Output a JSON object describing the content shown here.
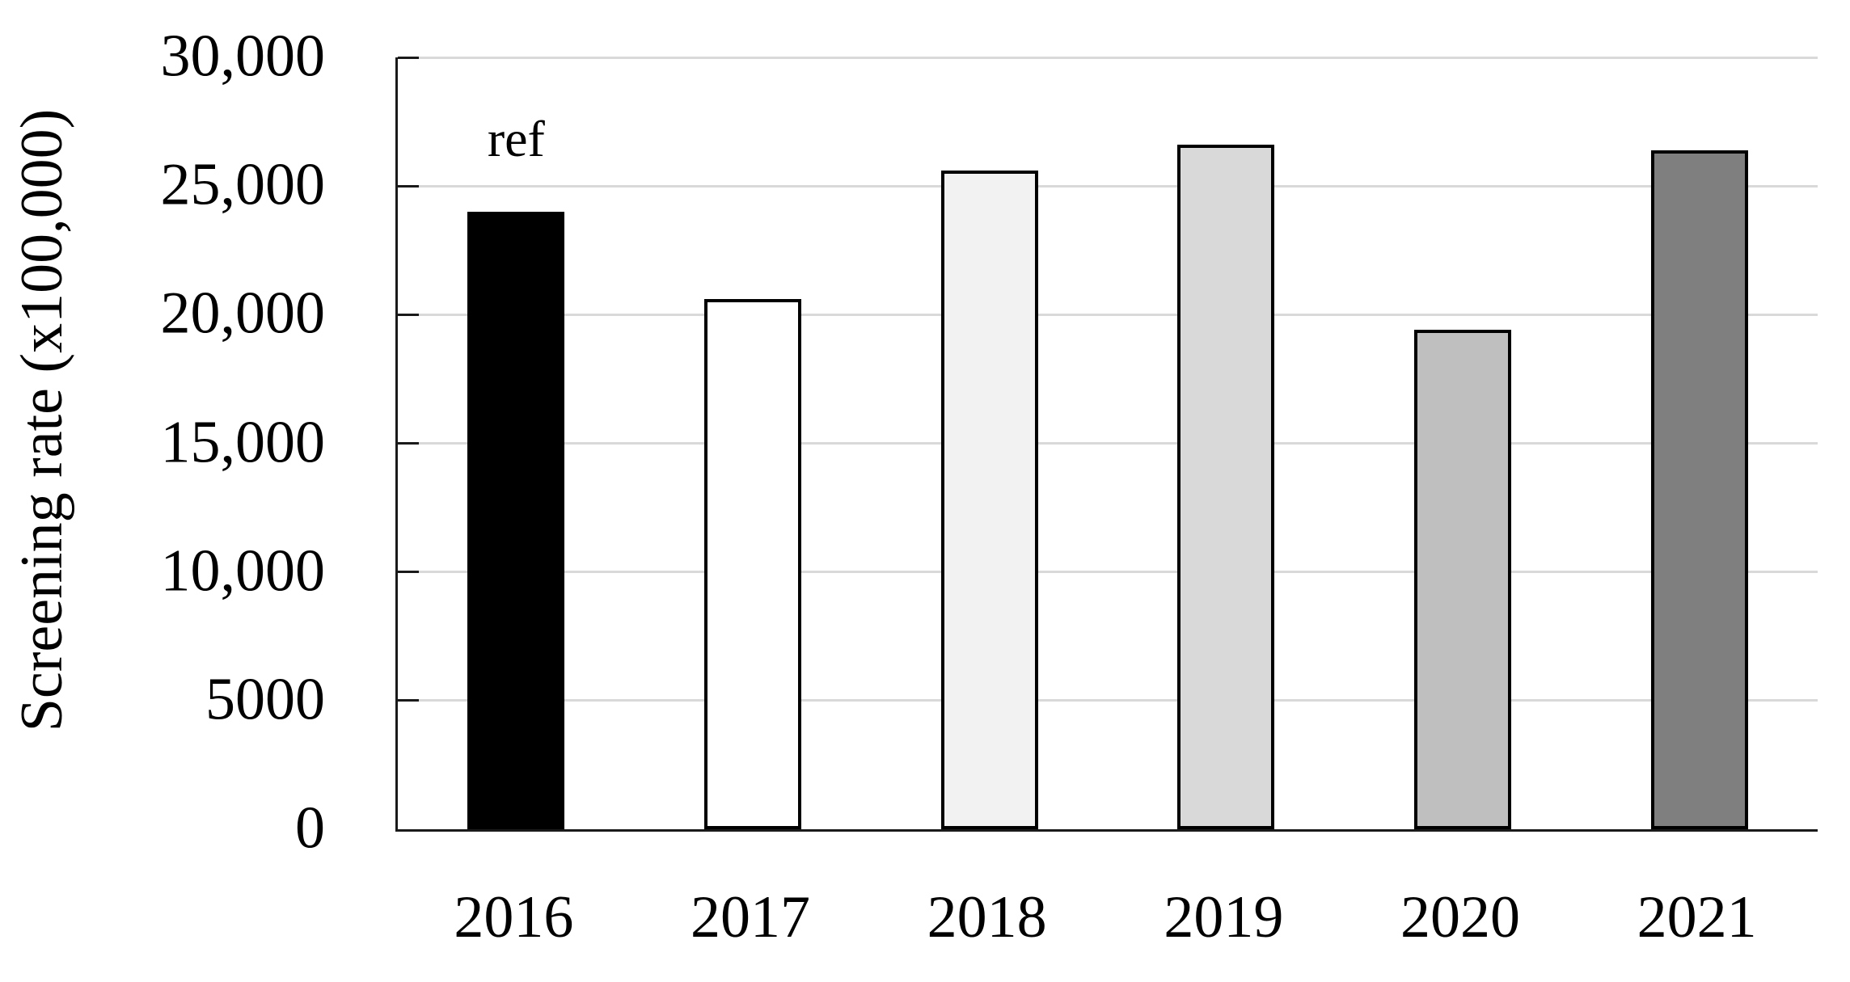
{
  "chart_data": {
    "type": "bar",
    "title": "",
    "ylabel": "Screening rate (x100,000)",
    "xlabel": "",
    "categories": [
      "2016",
      "2017",
      "2018",
      "2019",
      "2020",
      "2021"
    ],
    "values": [
      24000,
      20600,
      25600,
      26600,
      19400,
      26400
    ],
    "series": [
      {
        "name": "Screening rate",
        "values": [
          24000,
          20600,
          25600,
          26600,
          19400,
          26400
        ]
      }
    ],
    "bar_fills": [
      "#000000",
      "#ffffff",
      "#f2f2f2",
      "#d9d9d9",
      "#bfbfbf",
      "#7f7f7f"
    ],
    "bar_border_color": "#000000",
    "ylim": [
      0,
      30000
    ],
    "yticks": [
      {
        "value": 0,
        "label": "0"
      },
      {
        "value": 5000,
        "label": "5000"
      },
      {
        "value": 10000,
        "label": "10,000"
      },
      {
        "value": 15000,
        "label": "15,000"
      },
      {
        "value": 20000,
        "label": "20,000"
      },
      {
        "value": 25000,
        "label": "25,000"
      },
      {
        "value": 30000,
        "label": "30,000"
      }
    ],
    "grid": "horizontal",
    "gridline_color": "#d9d9d9",
    "axis_color": "#1a1a1a",
    "text_color": "#000000",
    "background": "#ffffff",
    "legend": "none",
    "annotations": [
      {
        "text": "ref",
        "category": "2016",
        "position": "above-bar"
      }
    ]
  }
}
